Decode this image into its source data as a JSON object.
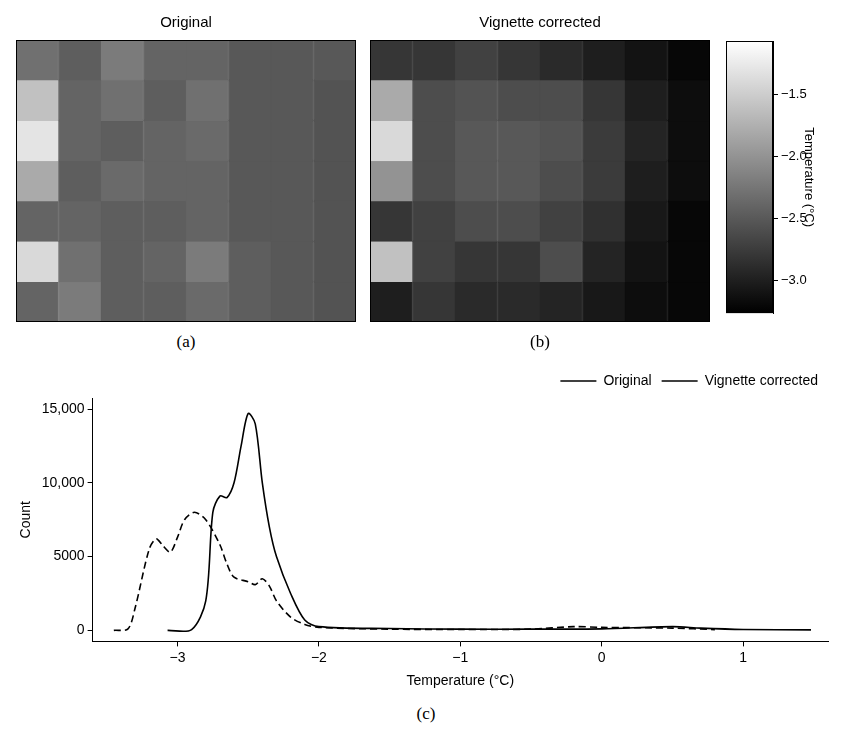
{
  "chart_data": [
    {
      "type": "heatmap",
      "panel": "(a)",
      "title": "Original",
      "cells": [
        [
          -2.3,
          -2.45,
          -2.2,
          -2.4,
          -2.4,
          -2.5,
          -2.5,
          -2.5
        ],
        [
          -1.6,
          -2.4,
          -2.3,
          -2.45,
          -2.3,
          -2.5,
          -2.5,
          -2.55
        ],
        [
          -1.3,
          -2.4,
          -2.45,
          -2.4,
          -2.35,
          -2.5,
          -2.5,
          -2.55
        ],
        [
          -1.8,
          -2.45,
          -2.35,
          -2.4,
          -2.4,
          -2.5,
          -2.5,
          -2.55
        ],
        [
          -2.4,
          -2.4,
          -2.45,
          -2.45,
          -2.4,
          -2.5,
          -2.5,
          -2.55
        ],
        [
          -1.4,
          -2.3,
          -2.45,
          -2.4,
          -2.2,
          -2.45,
          -2.5,
          -2.55
        ],
        [
          -2.4,
          -2.2,
          -2.45,
          -2.45,
          -2.35,
          -2.45,
          -2.5,
          -2.55
        ]
      ]
    },
    {
      "type": "heatmap",
      "panel": "(b)",
      "title": "Vignette corrected",
      "cells": [
        [
          -2.8,
          -2.8,
          -2.7,
          -2.8,
          -2.9,
          -3.0,
          -3.1,
          -3.2
        ],
        [
          -1.8,
          -2.6,
          -2.55,
          -2.6,
          -2.6,
          -2.8,
          -3.0,
          -3.15
        ],
        [
          -1.4,
          -2.6,
          -2.5,
          -2.5,
          -2.55,
          -2.75,
          -2.95,
          -3.15
        ],
        [
          -2.0,
          -2.6,
          -2.5,
          -2.5,
          -2.6,
          -2.75,
          -3.0,
          -3.15
        ],
        [
          -2.8,
          -2.7,
          -2.6,
          -2.6,
          -2.7,
          -2.85,
          -3.05,
          -3.2
        ],
        [
          -1.6,
          -2.7,
          -2.8,
          -2.8,
          -2.6,
          -2.95,
          -3.1,
          -3.2
        ],
        [
          -3.0,
          -2.8,
          -2.9,
          -2.9,
          -2.95,
          -3.05,
          -3.15,
          -3.2
        ]
      ],
      "colorbar": {
        "label": "Temperature (°C)",
        "range": [
          -3.26,
          -1.07
        ],
        "ticks": [
          {
            "value": -3.0,
            "label": "−3.0"
          },
          {
            "value": -2.5,
            "label": "−2.5"
          },
          {
            "value": -2.0,
            "label": "−2.0"
          },
          {
            "value": -1.5,
            "label": "−1.5"
          }
        ]
      }
    },
    {
      "type": "line",
      "panel": "(c)",
      "x_label": "Temperature (°C)",
      "y_label": "Count",
      "grid": false,
      "legend": "upper right",
      "xlim": [
        -3.6,
        1.6
      ],
      "xticks": [
        {
          "value": -3,
          "label": "−3"
        },
        {
          "value": -2,
          "label": "−2"
        },
        {
          "value": -1,
          "label": "−1"
        },
        0,
        1
      ],
      "ylim": [
        -750,
        15750
      ],
      "yticks": [
        0,
        5000,
        {
          "value": 10000,
          "label": "10,000"
        },
        {
          "value": 15000,
          "label": "15,000"
        }
      ],
      "series": [
        {
          "name": "Original",
          "color": "#000000",
          "line_style": "solid",
          "x": [
            -3.07,
            -2.9,
            -2.8,
            -2.75,
            -2.7,
            -2.65,
            -2.6,
            -2.55,
            -2.5,
            -2.45,
            -2.4,
            -2.35,
            -2.3,
            -2.2,
            -2.1,
            -2.0,
            -1.5,
            -1.0,
            -0.5,
            0,
            0.5,
            0.7,
            1.0,
            1.48
          ],
          "values": [
            0,
            50,
            2000,
            8000,
            9100,
            9000,
            10000,
            12500,
            14700,
            14000,
            10000,
            7000,
            5000,
            2500,
            700,
            250,
            120,
            80,
            80,
            100,
            250,
            150,
            60,
            30
          ]
        },
        {
          "name": "Vignette corrected",
          "color": "#000000",
          "line_style": "dashed",
          "x": [
            -3.45,
            -3.35,
            -3.3,
            -3.2,
            -3.15,
            -3.1,
            -3.05,
            -3.0,
            -2.95,
            -2.88,
            -2.8,
            -2.7,
            -2.65,
            -2.6,
            -2.5,
            -2.45,
            -2.4,
            -2.35,
            -2.3,
            -2.2,
            -2.1,
            -2.0,
            -1.5,
            -1.0,
            -0.5,
            -0.2,
            0,
            0.5,
            0.8
          ],
          "values": [
            0,
            100,
            1500,
            5500,
            6200,
            5700,
            5300,
            6300,
            7500,
            8000,
            7500,
            5800,
            4500,
            3600,
            3300,
            3100,
            3500,
            3000,
            2000,
            900,
            400,
            200,
            80,
            60,
            80,
            250,
            200,
            150,
            50
          ]
        }
      ]
    }
  ]
}
